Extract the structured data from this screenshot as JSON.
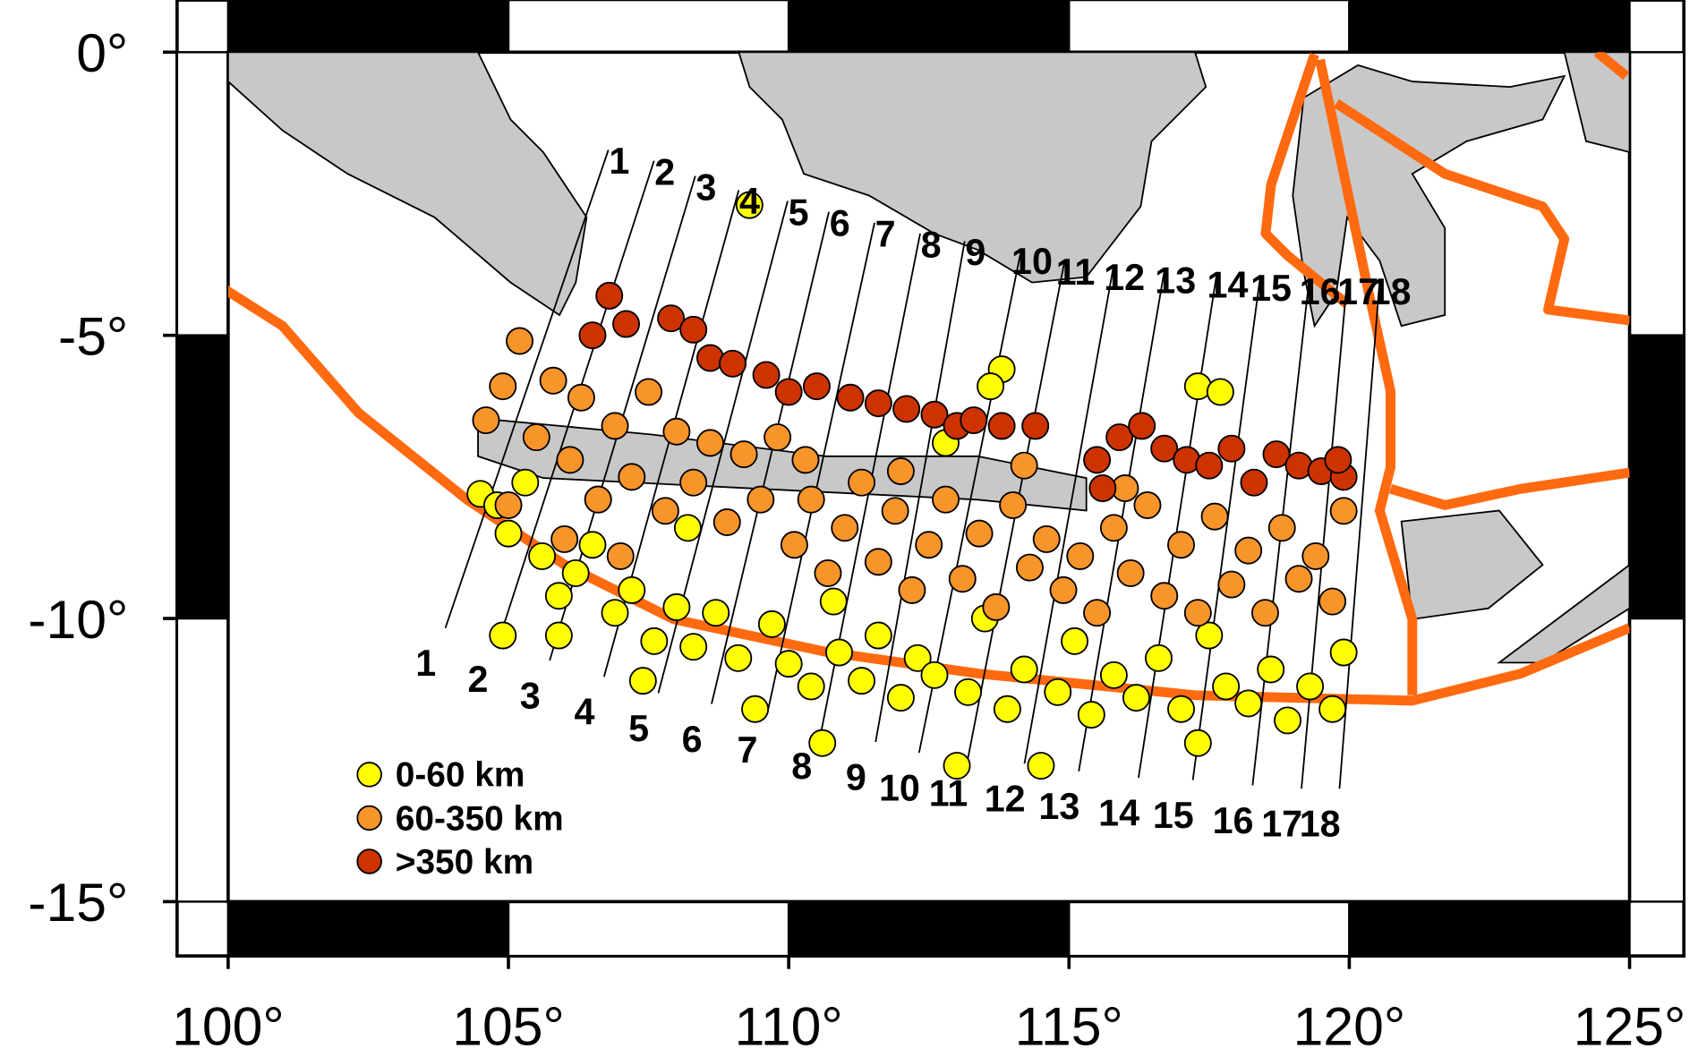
{
  "chart_data": {
    "type": "map",
    "xlim": [
      100,
      125
    ],
    "ylim": [
      -15,
      0
    ],
    "xticks": [
      {
        "value": 100,
        "label": "100°"
      },
      {
        "value": 105,
        "label": "105°"
      },
      {
        "value": 110,
        "label": "110°"
      },
      {
        "value": 115,
        "label": "115°"
      },
      {
        "value": 120,
        "label": "120°"
      },
      {
        "value": 125,
        "label": "125°"
      }
    ],
    "yticks": [
      {
        "value": 0,
        "label": "0°"
      },
      {
        "value": -5,
        "label": "-5°"
      },
      {
        "value": -10,
        "label": "-10°"
      },
      {
        "value": -15,
        "label": "-15°"
      }
    ],
    "profile_labels": [
      "1",
      "2",
      "3",
      "4",
      "5",
      "6",
      "7",
      "8",
      "9",
      "10",
      "11",
      "12",
      "13",
      "14",
      "15",
      "16",
      "17",
      "18"
    ],
    "series": [
      {
        "name": "0-60 km",
        "color": "#ffff00",
        "x": [
          104.5,
          104.8,
          105.0,
          105.3,
          105.6,
          105.9,
          106.2,
          106.5,
          106.9,
          107.2,
          107.4,
          107.6,
          108.0,
          108.3,
          108.7,
          109.1,
          109.4,
          109.7,
          110.0,
          110.4,
          110.6,
          110.9,
          111.3,
          111.6,
          112.0,
          112.3,
          112.6,
          113.0,
          113.2,
          113.5,
          113.8,
          113.9,
          114.2,
          114.5,
          114.8,
          115.1,
          115.4,
          115.8,
          116.2,
          116.6,
          117.0,
          117.3,
          117.5,
          117.8,
          118.2,
          118.6,
          118.9,
          119.3,
          119.7,
          119.9,
          117.3,
          117.7,
          109.3,
          104.9,
          105.9,
          106.6,
          108.2,
          110.8,
          112.8,
          113.6
        ],
        "y": [
          -7.8,
          -8.0,
          -8.5,
          -7.6,
          -8.9,
          -9.6,
          -9.2,
          -8.7,
          -9.9,
          -9.5,
          -11.1,
          -10.4,
          -9.8,
          -10.5,
          -9.9,
          -10.7,
          -11.6,
          -10.1,
          -10.8,
          -11.2,
          -12.2,
          -10.6,
          -11.1,
          -10.3,
          -11.4,
          -10.7,
          -11.0,
          -12.6,
          -11.3,
          -10.0,
          -5.6,
          -11.6,
          -10.9,
          -12.6,
          -11.3,
          -10.4,
          -11.7,
          -11.0,
          -11.4,
          -10.7,
          -11.6,
          -12.2,
          -10.3,
          -11.2,
          -11.5,
          -10.9,
          -11.8,
          -11.2,
          -11.6,
          -10.6,
          -5.9,
          -6.0,
          -2.7,
          -10.3,
          -10.3,
          -7.9,
          -8.4,
          -9.7,
          -6.9,
          -5.9
        ]
      },
      {
        "name": "60-350 km",
        "color": "#f7942a",
        "x": [
          104.6,
          104.9,
          105.2,
          105.5,
          105.8,
          106.1,
          106.3,
          106.6,
          106.9,
          107.2,
          107.5,
          107.8,
          108.0,
          108.3,
          108.6,
          108.9,
          109.2,
          109.5,
          109.8,
          110.1,
          110.4,
          110.7,
          111.0,
          111.3,
          111.6,
          111.9,
          112.2,
          112.5,
          112.8,
          113.1,
          113.4,
          113.7,
          114.0,
          114.3,
          114.6,
          114.9,
          115.2,
          115.5,
          115.8,
          116.1,
          116.4,
          116.7,
          117.0,
          117.3,
          117.6,
          117.9,
          118.2,
          118.5,
          118.8,
          119.1,
          119.4,
          119.7,
          119.9,
          110.3,
          112.0,
          114.2,
          116.0,
          105.0,
          106.0,
          107.0
        ],
        "y": [
          -6.5,
          -5.9,
          -5.1,
          -6.8,
          -5.8,
          -7.2,
          -6.1,
          -7.9,
          -6.6,
          -7.5,
          -6.0,
          -8.1,
          -6.7,
          -7.6,
          -6.9,
          -8.3,
          -7.1,
          -7.9,
          -6.8,
          -8.7,
          -7.9,
          -9.2,
          -8.4,
          -7.6,
          -9.0,
          -8.1,
          -9.5,
          -8.7,
          -7.9,
          -9.3,
          -8.5,
          -9.8,
          -8.0,
          -9.1,
          -8.6,
          -9.5,
          -8.9,
          -9.9,
          -8.4,
          -9.2,
          -8.0,
          -9.6,
          -8.7,
          -9.9,
          -8.2,
          -9.4,
          -8.8,
          -9.9,
          -8.4,
          -9.3,
          -8.9,
          -9.7,
          -8.1,
          -7.2,
          -7.4,
          -7.3,
          -7.7,
          -8.0,
          -8.6,
          -8.9
        ]
      },
      {
        "name": ">350 km",
        "color": "#cc3300",
        "x": [
          106.8,
          107.1,
          106.5,
          107.9,
          108.3,
          108.6,
          109.0,
          109.6,
          110.0,
          110.5,
          111.1,
          111.6,
          112.1,
          112.6,
          113.0,
          113.3,
          113.8,
          114.4,
          115.5,
          115.9,
          116.3,
          116.7,
          117.1,
          117.5,
          117.9,
          118.3,
          118.7,
          119.1,
          119.5,
          119.9,
          119.8,
          115.6
        ],
        "y": [
          -4.3,
          -4.8,
          -5.0,
          -4.7,
          -4.9,
          -5.4,
          -5.5,
          -5.7,
          -6.0,
          -5.9,
          -6.1,
          -6.2,
          -6.3,
          -6.4,
          -6.6,
          -6.5,
          -6.6,
          -6.6,
          -7.2,
          -6.8,
          -6.6,
          -7.0,
          -7.2,
          -7.3,
          -7.0,
          -7.6,
          -7.1,
          -7.3,
          -7.4,
          -7.5,
          -7.2,
          -7.7
        ]
      }
    ]
  }
}
